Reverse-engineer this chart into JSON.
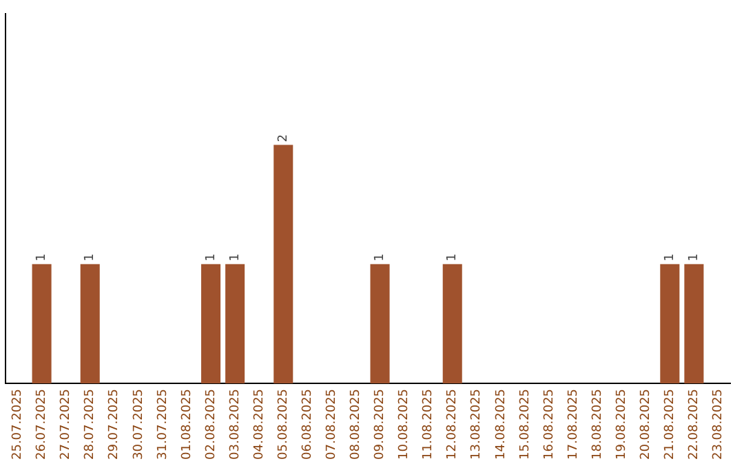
{
  "chart_data": {
    "type": "bar",
    "categories": [
      "25.07.2025",
      "26.07.2025",
      "27.07.2025",
      "28.07.2025",
      "29.07.2025",
      "30.07.2025",
      "31.07.2025",
      "01.08.2025",
      "02.08.2025",
      "03.08.2025",
      "04.08.2025",
      "05.08.2025",
      "06.08.2025",
      "07.08.2025",
      "08.08.2025",
      "09.08.2025",
      "10.08.2025",
      "11.08.2025",
      "12.08.2025",
      "13.08.2025",
      "14.08.2025",
      "15.08.2025",
      "16.08.2025",
      "17.08.2025",
      "18.08.2025",
      "19.08.2025",
      "20.08.2025",
      "21.08.2025",
      "22.08.2025",
      "23.08.2025"
    ],
    "values": [
      0,
      1,
      0,
      1,
      0,
      0,
      0,
      0,
      1,
      1,
      0,
      2,
      0,
      0,
      0,
      1,
      0,
      0,
      1,
      0,
      0,
      0,
      0,
      0,
      0,
      0,
      0,
      1,
      1,
      0
    ],
    "value_labels": [
      null,
      "1",
      null,
      "1",
      null,
      null,
      null,
      null,
      "1",
      "1",
      null,
      "2",
      null,
      null,
      null,
      "1",
      null,
      null,
      "1",
      null,
      null,
      null,
      null,
      null,
      null,
      null,
      null,
      "1",
      "1",
      null
    ],
    "color": "#a0522d",
    "ylim": [
      0,
      3.1
    ],
    "tick_labels": "x",
    "grid": false,
    "legend": false
  }
}
